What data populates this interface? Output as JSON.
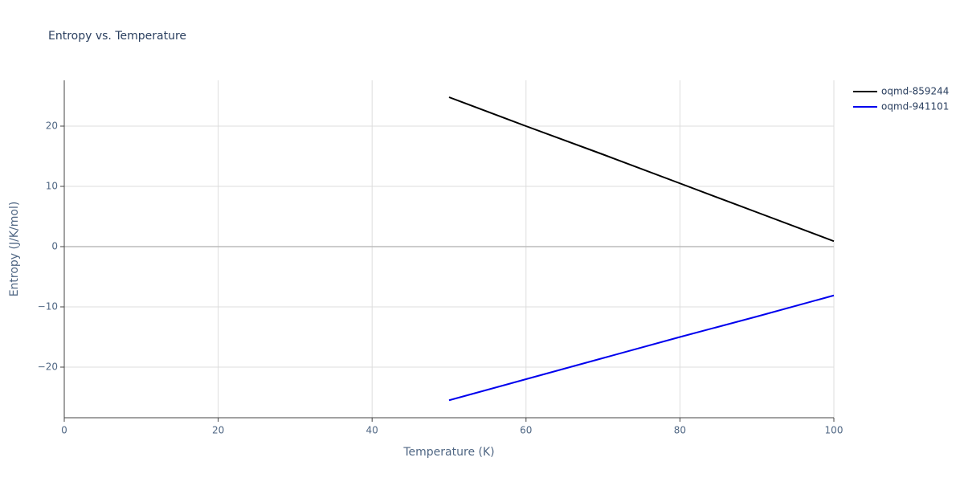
{
  "chart_data": {
    "type": "line",
    "title": "Entropy vs. Temperature",
    "x_label": "Temperature (K)",
    "y_label": "Entropy (J/K/mol)",
    "x": [
      50,
      60,
      70,
      80,
      90,
      100
    ],
    "series": [
      {
        "name": "oqmd-859244",
        "color": "#000000",
        "values": [
          24.8,
          20.0,
          15.3,
          10.5,
          5.7,
          0.9
        ]
      },
      {
        "name": "oqmd-941101",
        "color": "#0000ee",
        "values": [
          -25.5,
          -22.0,
          -18.5,
          -15.0,
          -11.6,
          -8.1
        ]
      }
    ],
    "xlim": [
      0,
      100
    ],
    "xticks": [
      0,
      20,
      40,
      60,
      80,
      100
    ],
    "ylim": [
      -28.4,
      27.6
    ],
    "yticks": [
      {
        "value": -20,
        "label": "−20"
      },
      {
        "value": -10,
        "label": "−10"
      },
      0,
      10,
      20
    ],
    "grid": true,
    "legend": "top-right"
  }
}
